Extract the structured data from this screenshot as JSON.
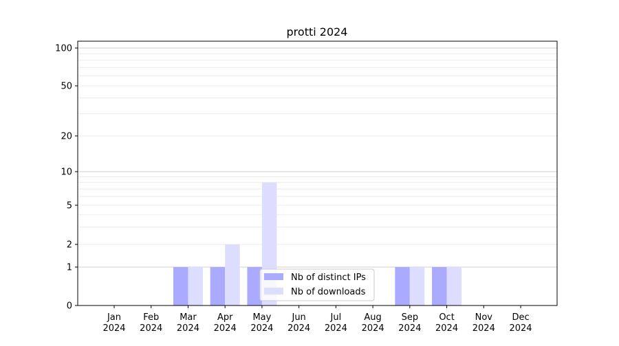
{
  "chart_data": {
    "type": "bar",
    "title": "protti 2024",
    "xlabel": "",
    "ylabel": "",
    "yscale": "symlog",
    "ylim": [
      0,
      110
    ],
    "yticks": [
      "0",
      "1",
      "2",
      "5",
      "10",
      "20",
      "50",
      "100"
    ],
    "grid": true,
    "legend": "lower-center",
    "categories": [
      "Jan\n2024",
      "Feb\n2024",
      "Mar\n2024",
      "Apr\n2024",
      "May\n2024",
      "Jun\n2024",
      "Jul\n2024",
      "Aug\n2024",
      "Sep\n2024",
      "Oct\n2024",
      "Nov\n2024",
      "Dec\n2024"
    ],
    "series": [
      {
        "name": "Nb of distinct IPs",
        "color": "#aaaaff",
        "values": [
          0,
          0,
          1,
          1,
          1,
          0,
          0,
          0,
          1,
          1,
          0,
          0
        ]
      },
      {
        "name": "Nb of downloads",
        "color": "#ddddff",
        "values": [
          0,
          0,
          1,
          2,
          8,
          0,
          0,
          0,
          1,
          1,
          0,
          0
        ]
      }
    ]
  }
}
